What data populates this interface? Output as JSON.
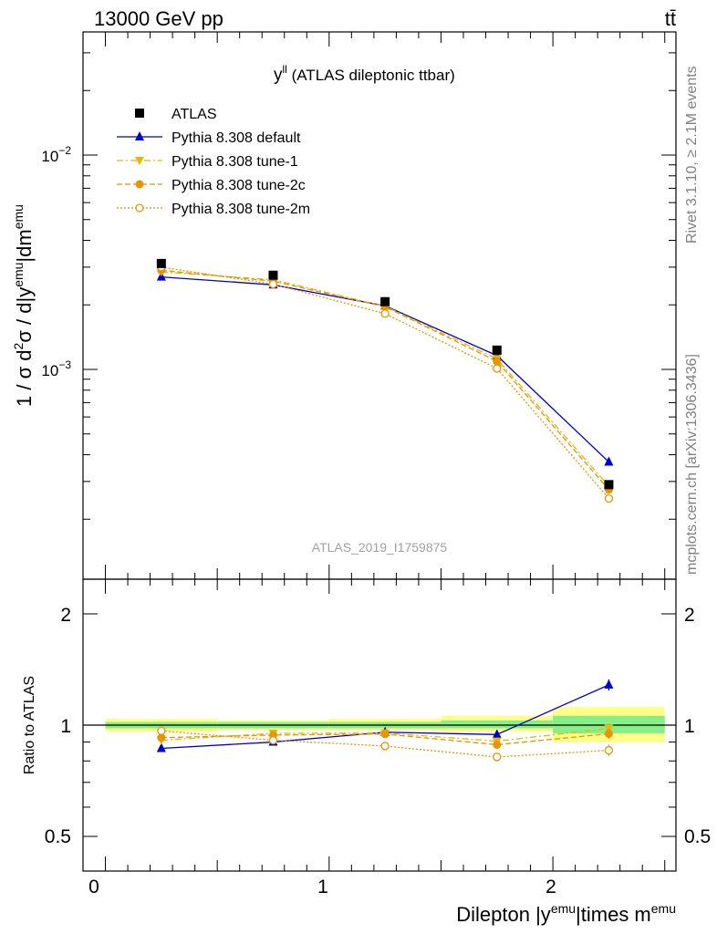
{
  "header": {
    "left": "13000 GeV pp",
    "right": "tt̄"
  },
  "side_labels": {
    "rivet": "Rivet 3.1.10, ≥ 2.1M events",
    "mcplots": "mcplots.cern.ch [arXiv:1306.3436]"
  },
  "main_plot": {
    "title_main": "y",
    "title_sup": "ll",
    "title_rest": " (ATLAS dileptonic ttbar)",
    "watermark": "ATLAS_2019_I1759875",
    "ylabel": {
      "p1": "1 / σ  d",
      "s1": "2",
      "p2": "σ / d|y",
      "s2": "emu",
      "p3": "|dm",
      "s3": "emu"
    },
    "ytick_labels": [
      {
        "mant": "10",
        "exp": "−2",
        "value": 0.01
      },
      {
        "mant": "10",
        "exp": "−3",
        "value": 0.001
      }
    ]
  },
  "ratio_plot": {
    "ylabel": "Ratio to ATLAS",
    "ytick_labels": [
      "2",
      "1",
      "0.5"
    ]
  },
  "xaxis": {
    "label_p1": "Dilepton |y",
    "label_s1": "emu",
    "label_p2": "|times m",
    "label_s2": "emu",
    "tick_labels": [
      "0",
      "1",
      "2"
    ]
  },
  "chart_data": [
    {
      "type": "scatter",
      "log_y": true,
      "ylim": [
        0.00013,
        0.04
      ],
      "xlim": [
        -0.1,
        2.55
      ],
      "x": [
        0.25,
        0.75,
        1.25,
        1.75,
        2.25
      ],
      "legend_position": "top-left",
      "series": [
        {
          "name": "ATLAS",
          "color": "#000000",
          "marker": "square",
          "line": "none",
          "values": [
            0.00312,
            0.00275,
            0.00207,
            0.00123,
            0.00029
          ]
        },
        {
          "name": "Pythia 8.308 default",
          "color": "#0000cc",
          "marker": "triangle-up",
          "line": "solid",
          "values": [
            0.0027,
            0.00248,
            0.00198,
            0.00116,
            0.00037
          ]
        },
        {
          "name": "Pythia 8.308 tune-1",
          "color": "#e6b800",
          "marker": "triangle-down",
          "line": "dashdot",
          "values": [
            0.00285,
            0.00262,
            0.00197,
            0.00112,
            0.000285
          ]
        },
        {
          "name": "Pythia 8.308 tune-2c",
          "color": "#e69500",
          "marker": "circle",
          "line": "dashed",
          "values": [
            0.0029,
            0.00258,
            0.00196,
            0.00109,
            0.000275
          ]
        },
        {
          "name": "Pythia 8.308 tune-2m",
          "color": "#e69500",
          "marker": "open-circle",
          "line": "dotted",
          "values": [
            0.003,
            0.0025,
            0.00182,
            0.00101,
            0.00025
          ]
        }
      ]
    },
    {
      "type": "line",
      "log_y": true,
      "ylim": [
        0.42,
        2.35
      ],
      "ylabel": "Ratio to ATLAS",
      "x": [
        0.25,
        0.75,
        1.25,
        1.75,
        2.25
      ],
      "bands": [
        {
          "x": [
            0.0,
            0.5
          ],
          "stat": [
            0.98,
            1.02
          ],
          "total": [
            0.96,
            1.04
          ]
        },
        {
          "x": [
            0.5,
            1.0
          ],
          "stat": [
            0.98,
            1.02
          ],
          "total": [
            0.97,
            1.03
          ]
        },
        {
          "x": [
            1.0,
            1.5
          ],
          "stat": [
            0.98,
            1.02
          ],
          "total": [
            0.97,
            1.04
          ]
        },
        {
          "x": [
            1.5,
            2.0
          ],
          "stat": [
            0.98,
            1.03
          ],
          "total": [
            0.96,
            1.06
          ]
        },
        {
          "x": [
            2.0,
            2.5
          ],
          "stat": [
            0.95,
            1.06
          ],
          "total": [
            0.9,
            1.12
          ]
        }
      ],
      "series": [
        {
          "name": "Pythia 8.308 default",
          "color": "#0000cc",
          "marker": "triangle-up",
          "line": "solid",
          "values": [
            0.865,
            0.9,
            0.957,
            0.943,
            1.285
          ],
          "errors": [
            0,
            0,
            0,
            0.01,
            0.045
          ]
        },
        {
          "name": "Pythia 8.308 tune-1",
          "color": "#e6b800",
          "marker": "triangle-down",
          "line": "dashdot",
          "values": [
            0.91,
            0.95,
            0.952,
            0.905,
            0.98
          ],
          "errors": [
            0,
            0,
            0,
            0.01,
            0.03
          ]
        },
        {
          "name": "Pythia 8.308 tune-2c",
          "color": "#e69500",
          "marker": "circle",
          "line": "dashed",
          "values": [
            0.925,
            0.94,
            0.946,
            0.885,
            0.948
          ],
          "errors": [
            0,
            0,
            0,
            0.01,
            0.03
          ]
        },
        {
          "name": "Pythia 8.308 tune-2m",
          "color": "#e69500",
          "marker": "open-circle",
          "line": "dotted",
          "values": [
            0.965,
            0.91,
            0.878,
            0.82,
            0.855
          ],
          "errors": [
            0,
            0,
            0,
            0.01,
            0.03
          ]
        }
      ]
    }
  ]
}
